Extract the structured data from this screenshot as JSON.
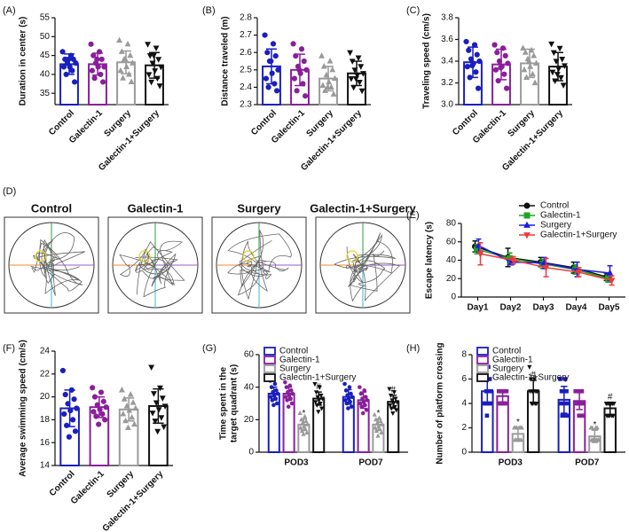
{
  "chart_data": [
    {
      "type": "bar",
      "panel": "(A)",
      "ylabel": "Duration in center (s)",
      "categories": [
        "Control",
        "Galectin-1",
        "Surgery",
        "Galectin-1+Surgery"
      ],
      "colors": [
        "#1a1fbf",
        "#8a1f9a",
        "#9a9a9a",
        "#111111"
      ],
      "markers": [
        "circle",
        "circle",
        "triangle",
        "triangle-down"
      ],
      "values": [
        42.7,
        42.7,
        43.2,
        42.4
      ],
      "errors": [
        2.7,
        2.9,
        3.0,
        3.4
      ],
      "points": [
        [
          46,
          45,
          44,
          44,
          43,
          43,
          42,
          42,
          41,
          40,
          38,
          44
        ],
        [
          48,
          46,
          45,
          44,
          43,
          42,
          42,
          41,
          40,
          39,
          38,
          44
        ],
        [
          49,
          48,
          46,
          45,
          44,
          43,
          42,
          41,
          40,
          39,
          38,
          44
        ],
        [
          48,
          47,
          45,
          44,
          43,
          42,
          41,
          40,
          39,
          38,
          37,
          45
        ]
      ],
      "ylim": [
        32,
        55
      ],
      "yticks": [
        35,
        40,
        45,
        50,
        55
      ]
    },
    {
      "type": "bar",
      "panel": "(B)",
      "ylabel": "Distance traveled (m)",
      "categories": [
        "Control",
        "Galectin-1",
        "Surgery",
        "Galectin-1+Surgery"
      ],
      "colors": [
        "#1a1fbf",
        "#8a1f9a",
        "#9a9a9a",
        "#111111"
      ],
      "markers": [
        "circle",
        "circle",
        "triangle",
        "triangle-down"
      ],
      "values": [
        2.52,
        2.5,
        2.45,
        2.48
      ],
      "errors": [
        0.1,
        0.09,
        0.07,
        0.07
      ],
      "points": [
        [
          2.7,
          2.65,
          2.6,
          2.58,
          2.55,
          2.5,
          2.48,
          2.45,
          2.42,
          2.4,
          2.38,
          2.55
        ],
        [
          2.65,
          2.62,
          2.58,
          2.55,
          2.52,
          2.5,
          2.48,
          2.45,
          2.42,
          2.38,
          2.35,
          2.5
        ],
        [
          2.58,
          2.55,
          2.52,
          2.5,
          2.47,
          2.45,
          2.43,
          2.41,
          2.4,
          2.38,
          2.36,
          2.4
        ],
        [
          2.6,
          2.57,
          2.55,
          2.52,
          2.5,
          2.48,
          2.47,
          2.45,
          2.43,
          2.4,
          2.38,
          2.45
        ]
      ],
      "ylim": [
        2.3,
        2.8
      ],
      "yticks": [
        2.3,
        2.4,
        2.5,
        2.6,
        2.7,
        2.8
      ]
    },
    {
      "type": "bar",
      "panel": "(C)",
      "ylabel": "Traveling speed (cm/s)",
      "categories": [
        "Control",
        "Galectin-1",
        "Surgery",
        "Galectin-1+Surgery"
      ],
      "colors": [
        "#1a1fbf",
        "#8a1f9a",
        "#9a9a9a",
        "#111111"
      ],
      "markers": [
        "circle",
        "circle",
        "triangle",
        "triangle-down"
      ],
      "values": [
        3.39,
        3.37,
        3.38,
        3.35
      ],
      "errors": [
        0.14,
        0.14,
        0.13,
        0.13
      ],
      "points": [
        [
          3.58,
          3.55,
          3.5,
          3.46,
          3.42,
          3.4,
          3.38,
          3.35,
          3.3,
          3.25,
          3.15,
          3.36
        ],
        [
          3.55,
          3.52,
          3.48,
          3.45,
          3.4,
          3.38,
          3.35,
          3.32,
          3.28,
          3.22,
          3.15,
          3.34
        ],
        [
          3.52,
          3.5,
          3.48,
          3.45,
          3.42,
          3.38,
          3.35,
          3.32,
          3.28,
          3.25,
          3.2,
          3.4
        ],
        [
          3.56,
          3.52,
          3.48,
          3.42,
          3.4,
          3.36,
          3.33,
          3.3,
          3.25,
          3.22,
          3.18,
          3.28
        ]
      ],
      "ylim": [
        3.0,
        3.8
      ],
      "yticks": [
        {
          "value": 3.0,
          "label": "3.0"
        },
        3.2,
        3.4,
        3.6,
        3.8
      ]
    },
    {
      "type": "line",
      "panel": "(E)",
      "ylabel": "Escape latency (s)",
      "legend": "upper right",
      "categories": [
        "Day1",
        "Day2",
        "Day3",
        "Day4",
        "Day5"
      ],
      "series": [
        {
          "name": "Control",
          "color": "#111111",
          "marker": "circle",
          "values": [
            55,
            43,
            38,
            32,
            22
          ],
          "errors": [
            6,
            10,
            5,
            6,
            4
          ]
        },
        {
          "name": "Galectin-1",
          "color": "#1fa51f",
          "marker": "square",
          "values": [
            52,
            42,
            36,
            30,
            20
          ],
          "errors": [
            5,
            6,
            5,
            5,
            4
          ]
        },
        {
          "name": "Surgery",
          "color": "#1a1af0",
          "marker": "triangle",
          "values": [
            56,
            38,
            37,
            30,
            26
          ],
          "errors": [
            7,
            3,
            6,
            8,
            8
          ]
        },
        {
          "name": "Galectin-1+Surgery",
          "color": "#f03a3a",
          "marker": "triangle-down",
          "values": [
            47,
            40,
            32,
            27,
            18
          ],
          "errors": [
            12,
            4,
            10,
            5,
            5
          ]
        }
      ],
      "ylim": [
        0,
        80
      ],
      "yticks": [
        0,
        20,
        40,
        60,
        80
      ]
    },
    {
      "type": "bar",
      "panel": "(F)",
      "ylabel": "Average swimming speed (cm/s)",
      "categories": [
        "Control",
        "Galectin-1",
        "Surgery",
        "Galectin-1+Surgery"
      ],
      "colors": [
        "#1a1fbf",
        "#8a1f9a",
        "#9a9a9a",
        "#111111"
      ],
      "markers": [
        "circle",
        "circle",
        "triangle",
        "triangle-down"
      ],
      "values": [
        19.0,
        19.1,
        18.9,
        19.2
      ],
      "errors": [
        1.6,
        0.9,
        1.0,
        1.5
      ],
      "points": [
        [
          22.3,
          20.6,
          20.2,
          19.8,
          19.4,
          19.0,
          18.8,
          18.5,
          18.0,
          17.5,
          17.0,
          16.5
        ],
        [
          20.8,
          20.4,
          20.0,
          19.6,
          19.3,
          19.1,
          18.9,
          18.7,
          18.5,
          18.3,
          18.0,
          17.6
        ],
        [
          20.6,
          20.2,
          19.8,
          19.5,
          19.2,
          19.0,
          18.8,
          18.5,
          18.2,
          17.9,
          17.6,
          17.3
        ],
        [
          22.6,
          20.8,
          20.3,
          19.9,
          19.5,
          19.2,
          18.9,
          18.6,
          18.2,
          17.9,
          17.4,
          17.0
        ]
      ],
      "ylim": [
        14,
        24
      ],
      "yticks": [
        14,
        16,
        18,
        20,
        22,
        24
      ]
    },
    {
      "type": "bar",
      "panel": "(G)",
      "ylabel": [
        "Time spent in the",
        "target quadrant (s)"
      ],
      "legend": "upper left",
      "categories": [
        "POD3",
        "POD7"
      ],
      "series": [
        {
          "name": "Control",
          "color": "#1a1fbf",
          "marker": "circle",
          "values": [
            36,
            34
          ],
          "errors": [
            4,
            4.5
          ],
          "points": [
            [
              44,
              42,
              40,
              38,
              37,
              36,
              35,
              34,
              33,
              32,
              30,
              29
            ],
            [
              42,
              40,
              38,
              36,
              35,
              34,
              33,
              32,
              31,
              30,
              28,
              27
            ]
          ]
        },
        {
          "name": "Galectin-1",
          "color": "#8a1f9a",
          "marker": "circle",
          "values": [
            36,
            32
          ],
          "errors": [
            4,
            5
          ],
          "points": [
            [
              43,
              41,
              40,
              38,
              37,
              36,
              35,
              34,
              33,
              32,
              30,
              28
            ],
            [
              40,
              38,
              36,
              34,
              33,
              32,
              31,
              30,
              29,
              28,
              26,
              24
            ]
          ]
        },
        {
          "name": "Surgery",
          "color": "#9a9a9a",
          "marker": "triangle",
          "annotation": "*",
          "values": [
            17,
            17
          ],
          "errors": [
            3.5,
            3.5
          ],
          "points": [
            [
              24,
              22,
              20,
              19,
              18,
              17,
              16,
              15,
              14,
              13,
              12,
              11
            ],
            [
              23,
              21,
              20,
              19,
              18,
              17,
              16,
              15,
              14,
              13,
              12,
              10
            ]
          ]
        },
        {
          "name": "Galectin-1+Surgery",
          "color": "#111111",
          "marker": "triangle-down",
          "annotation": "#",
          "values": [
            33,
            31
          ],
          "errors": [
            4,
            4
          ],
          "points": [
            [
              42,
              40,
              37,
              35,
              34,
              33,
              32,
              31,
              30,
              29,
              27,
              25
            ],
            [
              39,
              37,
              35,
              33,
              32,
              31,
              30,
              29,
              28,
              27,
              26,
              24
            ]
          ]
        }
      ],
      "ylim": [
        0,
        60
      ],
      "yticks": [
        0,
        20,
        40,
        60
      ]
    },
    {
      "type": "bar",
      "panel": "(H)",
      "ylabel": "Number of platform crossing",
      "legend": "upper left",
      "categories": [
        "POD3",
        "POD7"
      ],
      "series": [
        {
          "name": "Control",
          "color": "#1a1fbf",
          "marker": "square",
          "values": [
            5,
            4.3
          ],
          "errors": [
            1.1,
            1.1
          ],
          "points": [
            [
              7,
              7,
              6,
              6,
              5,
              5,
              5,
              4,
              4,
              4,
              4,
              3
            ],
            [
              6,
              6,
              5,
              5,
              5,
              4,
              4,
              4,
              3,
              3,
              3,
              3
            ]
          ]
        },
        {
          "name": "Galectin-1",
          "color": "#8a1f9a",
          "marker": "square",
          "values": [
            4.6,
            4.2
          ],
          "errors": [
            0.5,
            0.7
          ],
          "points": [
            [
              5,
              5,
              5,
              5,
              5,
              5,
              5,
              4,
              4,
              4,
              4,
              4
            ],
            [
              5,
              5,
              5,
              5,
              4,
              4,
              4,
              4,
              4,
              4,
              3,
              3
            ]
          ]
        },
        {
          "name": "Surgery",
          "color": "#9a9a9a",
          "marker": "triangle",
          "annotation": "*",
          "values": [
            1.5,
            1.3
          ],
          "errors": [
            0.5,
            0.5
          ],
          "points": [
            [
              2,
              2,
              2,
              2,
              2,
              2,
              1,
              1,
              1,
              1,
              1,
              1
            ],
            [
              2,
              2,
              2,
              2,
              1,
              1,
              1,
              1,
              1,
              1,
              1,
              1
            ]
          ]
        },
        {
          "name": "Galectin-1+Surgery",
          "color": "#111111",
          "marker": "triangle-down",
          "annotation": "#",
          "values": [
            5,
            3.6
          ],
          "errors": [
            0.9,
            0.5
          ],
          "points": [
            [
              7,
              6,
              6,
              5,
              5,
              5,
              5,
              5,
              4,
              4,
              4,
              4
            ],
            [
              4,
              4,
              4,
              4,
              4,
              4,
              4,
              3,
              3,
              3,
              3,
              3
            ]
          ]
        }
      ],
      "ylim": [
        0,
        8
      ],
      "yticks": [
        0,
        2,
        4,
        6,
        8
      ]
    }
  ],
  "panel_d": {
    "panel": "(D)",
    "labels": [
      "Control",
      "Galectin-1",
      "Surgery",
      "Galectin-1+Surgery"
    ]
  }
}
